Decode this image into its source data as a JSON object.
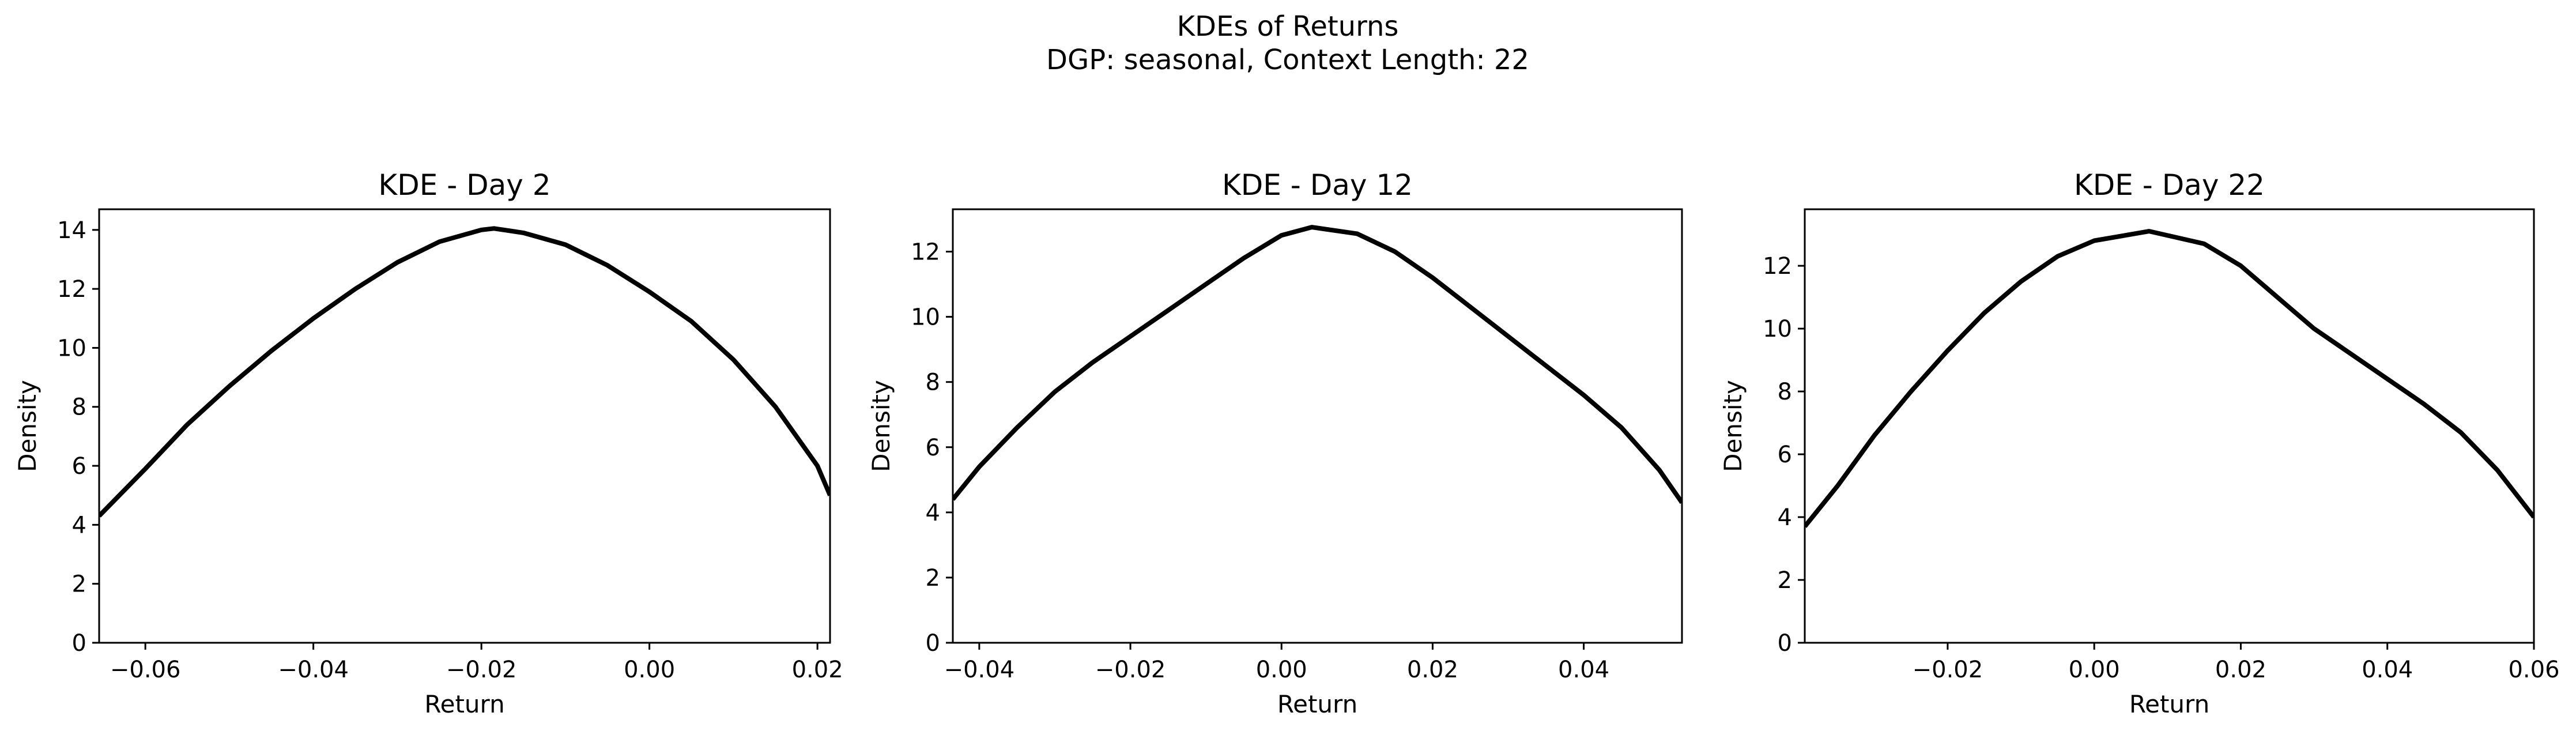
{
  "figure": {
    "title_line1": "KDEs of Returns",
    "title_line2": "DGP: seasonal, Context Length: 22"
  },
  "chart_data": [
    {
      "type": "line",
      "title": "KDE - Day 2",
      "xlabel": "Return",
      "ylabel": "Density",
      "xlim": [
        -0.0655,
        0.0215
      ],
      "ylim": [
        0,
        14.7
      ],
      "xticks": [
        -0.06,
        -0.04,
        -0.02,
        0.0,
        0.02
      ],
      "xtick_labels": [
        "−0.06",
        "−0.04",
        "−0.02",
        "0.00",
        "0.02"
      ],
      "yticks": [
        0,
        2,
        4,
        6,
        8,
        10,
        12,
        14
      ],
      "ytick_labels": [
        "0",
        "2",
        "4",
        "6",
        "8",
        "10",
        "12",
        "14"
      ],
      "grid": false,
      "color": "#000000",
      "series": [
        {
          "x": [
            -0.0655,
            -0.06,
            -0.055,
            -0.05,
            -0.045,
            -0.04,
            -0.035,
            -0.03,
            -0.025,
            -0.02,
            -0.0185,
            -0.015,
            -0.01,
            -0.005,
            0.0,
            0.005,
            0.01,
            0.015,
            0.02,
            0.0215
          ],
          "y": [
            4.3,
            5.9,
            7.4,
            8.7,
            9.9,
            11.0,
            12.0,
            12.9,
            13.6,
            14.0,
            14.05,
            13.9,
            13.5,
            12.8,
            11.9,
            10.9,
            9.6,
            8.0,
            6.0,
            5.0
          ]
        }
      ]
    },
    {
      "type": "line",
      "title": "KDE - Day 12",
      "xlabel": "Return",
      "ylabel": "Density",
      "xlim": [
        -0.0435,
        0.053
      ],
      "ylim": [
        0,
        13.3
      ],
      "xticks": [
        -0.04,
        -0.02,
        0.0,
        0.02,
        0.04
      ],
      "xtick_labels": [
        "−0.04",
        "−0.02",
        "0.00",
        "0.02",
        "0.04"
      ],
      "yticks": [
        0,
        2,
        4,
        6,
        8,
        10,
        12
      ],
      "ytick_labels": [
        "0",
        "2",
        "4",
        "6",
        "8",
        "10",
        "12"
      ],
      "grid": false,
      "color": "#000000",
      "series": [
        {
          "x": [
            -0.0435,
            -0.04,
            -0.035,
            -0.03,
            -0.025,
            -0.02,
            -0.015,
            -0.01,
            -0.005,
            0.0,
            0.004,
            0.01,
            0.015,
            0.02,
            0.025,
            0.03,
            0.035,
            0.04,
            0.045,
            0.05,
            0.053
          ],
          "y": [
            4.4,
            5.4,
            6.6,
            7.7,
            8.6,
            9.4,
            10.2,
            11.0,
            11.8,
            12.5,
            12.75,
            12.55,
            12.0,
            11.2,
            10.3,
            9.4,
            8.5,
            7.6,
            6.6,
            5.3,
            4.3
          ]
        }
      ]
    },
    {
      "type": "line",
      "title": "KDE - Day 22",
      "xlabel": "Return",
      "ylabel": "Density",
      "xlim": [
        -0.0395,
        0.06
      ],
      "ylim": [
        0,
        13.8
      ],
      "xticks": [
        -0.02,
        0.0,
        0.02,
        0.04,
        0.06
      ],
      "xtick_labels": [
        "−0.02",
        "0.00",
        "0.02",
        "0.04",
        "0.06"
      ],
      "yticks": [
        0,
        2,
        4,
        6,
        8,
        10,
        12
      ],
      "ytick_labels": [
        "0",
        "2",
        "4",
        "6",
        "8",
        "10",
        "12"
      ],
      "grid": false,
      "color": "#000000",
      "series": [
        {
          "x": [
            -0.0395,
            -0.035,
            -0.03,
            -0.025,
            -0.02,
            -0.015,
            -0.01,
            -0.005,
            0.0,
            0.0075,
            0.015,
            0.02,
            0.025,
            0.03,
            0.035,
            0.04,
            0.045,
            0.05,
            0.055,
            0.06
          ],
          "y": [
            3.7,
            5.0,
            6.6,
            8.0,
            9.3,
            10.5,
            11.5,
            12.3,
            12.8,
            13.1,
            12.7,
            12.0,
            11.0,
            10.0,
            9.2,
            8.4,
            7.6,
            6.7,
            5.5,
            4.0
          ]
        }
      ]
    }
  ]
}
